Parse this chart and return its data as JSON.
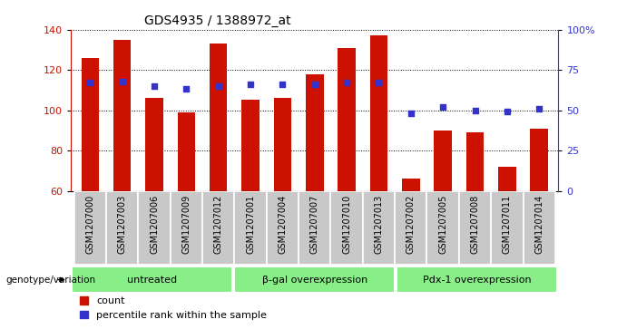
{
  "title": "GDS4935 / 1388972_at",
  "samples": [
    "GSM1207000",
    "GSM1207003",
    "GSM1207006",
    "GSM1207009",
    "GSM1207012",
    "GSM1207001",
    "GSM1207004",
    "GSM1207007",
    "GSM1207010",
    "GSM1207013",
    "GSM1207002",
    "GSM1207005",
    "GSM1207008",
    "GSM1207011",
    "GSM1207014"
  ],
  "counts": [
    126,
    135,
    106,
    99,
    133,
    105,
    106,
    118,
    131,
    137,
    66,
    90,
    89,
    72,
    91
  ],
  "percentile_ranks_pct": [
    67,
    68,
    65,
    63,
    65,
    66,
    66,
    66,
    67,
    67,
    48,
    52,
    50,
    49,
    51
  ],
  "groups": [
    {
      "label": "untreated",
      "start": 0,
      "end": 5
    },
    {
      "label": "β-gal overexpression",
      "start": 5,
      "end": 10
    },
    {
      "label": "Pdx-1 overexpression",
      "start": 10,
      "end": 15
    }
  ],
  "ylim_left": [
    60,
    140
  ],
  "ylim_right": [
    0,
    100
  ],
  "yticks_left": [
    60,
    80,
    100,
    120,
    140
  ],
  "yticks_right": [
    0,
    25,
    50,
    75,
    100
  ],
  "yticklabels_right": [
    "0",
    "25",
    "50",
    "75",
    "100%"
  ],
  "bar_color": "#cc1100",
  "percentile_color": "#3333cc",
  "bg_color": "#c8c8c8",
  "group_bg_color": "#88ee88",
  "bar_width": 0.55,
  "legend_count_label": "count",
  "legend_percentile_label": "percentile rank within the sample",
  "genotype_label": "genotype/variation"
}
